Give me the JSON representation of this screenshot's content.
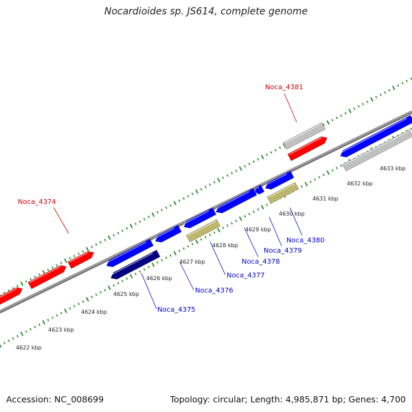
{
  "title": "Nocardioides sp. JS614, complete genome",
  "footer": {
    "accession": "Accession: NC_008699",
    "summary": "Topology: circular; Length: 4,985,871 bp; Genes: 4,700"
  },
  "colors": {
    "forward_gene": "#ff0000",
    "reverse_gene": "#0000ff",
    "reverse_gene_dark": "#000080",
    "grey_gene": "#c0c0c0",
    "khaki_gene": "#bdb76b",
    "ticks": "#228b22",
    "label_red": "#cc0000",
    "label_blue": "#0000cc",
    "backbone": "#808080"
  },
  "kbp_labels": [
    "4622 kbp",
    "4623 kbp",
    "4624 kbp",
    "4625 kbp",
    "4626 kbp",
    "4627 kbp",
    "4628 kbp",
    "4629 kbp",
    "4630 kbp",
    "4631 kbp",
    "4632 kbp",
    "4633 kbp"
  ],
  "gene_labels": [
    "Noca_4374",
    "Noca_4381",
    "Noca_4375",
    "Noca_4376",
    "Noca_4377",
    "Noca_4378",
    "Noca_4379",
    "Noca_4380"
  ]
}
